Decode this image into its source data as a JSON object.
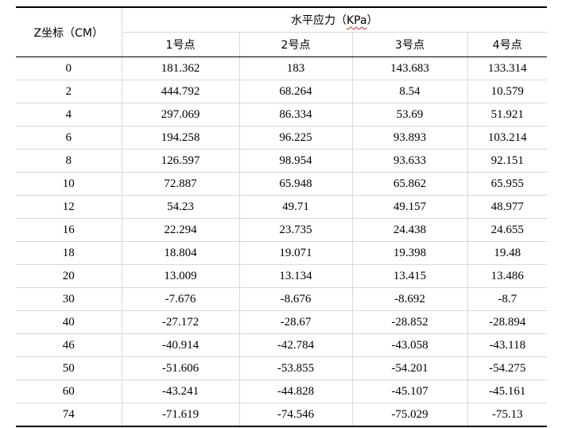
{
  "header": {
    "z_label": "Z坐标（CM）",
    "group_label_prefix": "水平应力（",
    "group_label_unit": "KPa",
    "group_label_suffix": "）",
    "points": [
      "1号点",
      "2号点",
      "3号点",
      "4号点"
    ]
  },
  "rows": [
    {
      "z": "0",
      "p1": "181.362",
      "p2": "183",
      "p3": "143.683",
      "p4": "133.314"
    },
    {
      "z": "2",
      "p1": "444.792",
      "p2": "68.264",
      "p3": "8.54",
      "p4": "10.579"
    },
    {
      "z": "4",
      "p1": "297.069",
      "p2": "86.334",
      "p3": "53.69",
      "p4": "51.921"
    },
    {
      "z": "6",
      "p1": "194.258",
      "p2": "96.225",
      "p3": "93.893",
      "p4": "103.214"
    },
    {
      "z": "8",
      "p1": "126.597",
      "p2": "98.954",
      "p3": "93.633",
      "p4": "92.151"
    },
    {
      "z": "10",
      "p1": "72.887",
      "p2": "65.948",
      "p3": "65.862",
      "p4": "65.955"
    },
    {
      "z": "12",
      "p1": "54.23",
      "p2": "49.71",
      "p3": "49.157",
      "p4": "48.977"
    },
    {
      "z": "16",
      "p1": "22.294",
      "p2": "23.735",
      "p3": "24.438",
      "p4": "24.655"
    },
    {
      "z": "18",
      "p1": "18.804",
      "p2": "19.071",
      "p3": "19.398",
      "p4": "19.48"
    },
    {
      "z": "20",
      "p1": "13.009",
      "p2": "13.134",
      "p3": "13.415",
      "p4": "13.486"
    },
    {
      "z": "30",
      "p1": "-7.676",
      "p2": "-8.676",
      "p3": "-8.692",
      "p4": "-8.7"
    },
    {
      "z": "40",
      "p1": "-27.172",
      "p2": "-28.67",
      "p3": "-28.852",
      "p4": "-28.894"
    },
    {
      "z": "46",
      "p1": "-40.914",
      "p2": "-42.784",
      "p3": "-43.058",
      "p4": "-43.118"
    },
    {
      "z": "50",
      "p1": "-51.606",
      "p2": "-53.855",
      "p3": "-54.201",
      "p4": "-54.275"
    },
    {
      "z": "60",
      "p1": "-43.241",
      "p2": "-44.828",
      "p3": "-45.107",
      "p4": "-45.161"
    },
    {
      "z": "74",
      "p1": "-71.619",
      "p2": "-74.546",
      "p3": "-75.029",
      "p4": "-75.13"
    }
  ],
  "colors": {
    "rule": "#000000",
    "grid": "#d9d9d9",
    "spellcheck_underline": "#e02020"
  }
}
